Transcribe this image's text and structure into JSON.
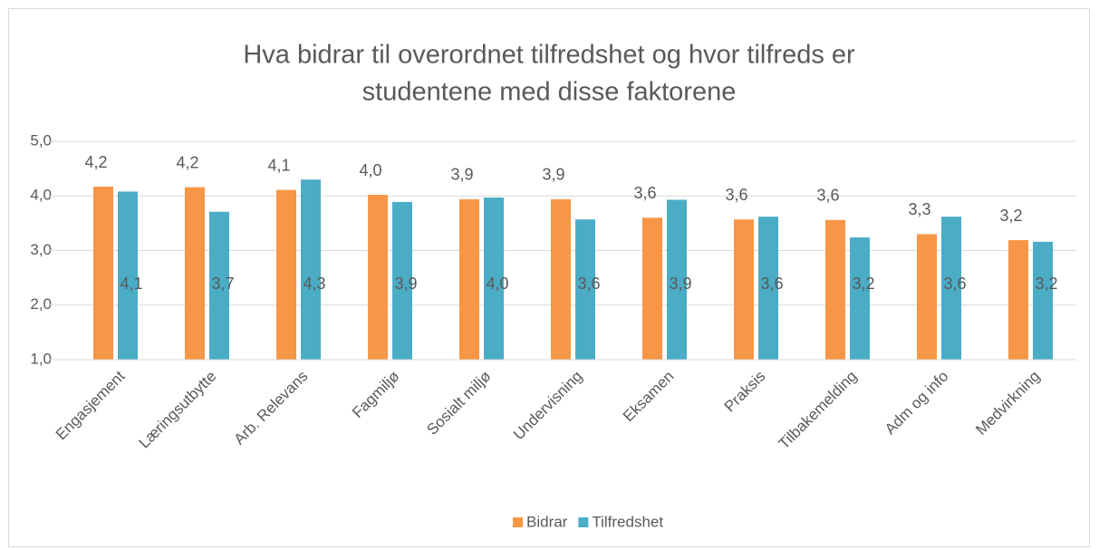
{
  "chart_data": {
    "type": "bar",
    "title": [
      "Hva bidrar til overordnet tilfredshet og hvor tilfreds er",
      "studentene med disse faktorene"
    ],
    "categories": [
      "Engasjement",
      "Læringsutbytte",
      "Arb. Relevans",
      "Fagmiljø",
      "Sosialt miljø",
      "Undervisning",
      "Eksamen",
      "Praksis",
      "Tilbakemelding",
      "Adm og info",
      "Medvirkning"
    ],
    "series": [
      {
        "name": "Bidrar",
        "color": "#f79646",
        "values": [
          4.17,
          4.16,
          4.11,
          4.02,
          3.94,
          3.94,
          3.6,
          3.57,
          3.56,
          3.3,
          3.19
        ],
        "value_labels": [
          "4,2",
          "4,2",
          "4,1",
          "4,0",
          "3,9",
          "3,9",
          "3,6",
          "3,6",
          "3,6",
          "3,3",
          "3,2"
        ]
      },
      {
        "name": "Tilfredshet",
        "color": "#4bacc6",
        "values": [
          4.08,
          3.71,
          4.3,
          3.89,
          3.97,
          3.57,
          3.93,
          3.62,
          3.24,
          3.62,
          3.16
        ],
        "value_labels": [
          "4,1",
          "3,7",
          "4,3",
          "3,9",
          "4,0",
          "3,6",
          "3,9",
          "3,6",
          "3,2",
          "3,6",
          "3,2"
        ]
      }
    ],
    "ylim": [
      1,
      5
    ],
    "yticks": [
      {
        "value": 1,
        "label": "1,0"
      },
      {
        "value": 2,
        "label": "2,0"
      },
      {
        "value": 3,
        "label": "3,0"
      },
      {
        "value": 4,
        "label": "4,0"
      },
      {
        "value": 5,
        "label": "5,0"
      }
    ],
    "grid": true,
    "legend": "bottom"
  }
}
